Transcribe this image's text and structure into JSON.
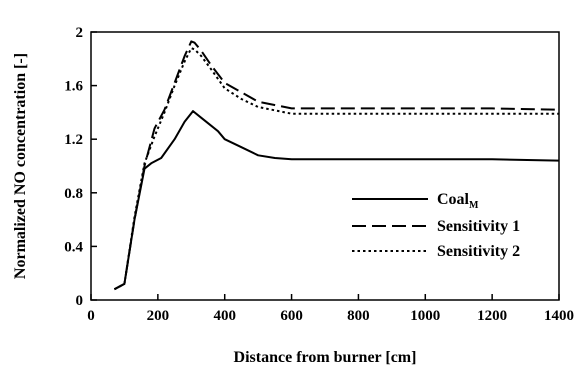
{
  "chart_data": {
    "type": "line",
    "xlabel": "Distance from burner [cm]",
    "ylabel": "Normalized NO concentration [-]",
    "xlim": [
      0,
      1400
    ],
    "ylim": [
      0,
      2
    ],
    "xticks": [
      0,
      200,
      400,
      600,
      800,
      1000,
      1200,
      1400
    ],
    "yticks": [
      0,
      0.4,
      0.8,
      1.2,
      1.6,
      2
    ],
    "xtick_labels": [
      "0",
      "200",
      "400",
      "600",
      "800",
      "1000",
      "1200",
      "1400"
    ],
    "ytick_labels": [
      "0",
      "0.4",
      "0.8",
      "1.2",
      "1.6",
      "2"
    ],
    "grid": false,
    "legend_position": "center-right",
    "series": [
      {
        "name": "Coal",
        "name_subscript": "M",
        "style": "solid",
        "x": [
          70,
          100,
          130,
          160,
          180,
          210,
          250,
          280,
          305,
          330,
          360,
          380,
          400,
          450,
          500,
          550,
          600,
          800,
          1000,
          1200,
          1400
        ],
        "y": [
          0.08,
          0.12,
          0.6,
          0.98,
          1.02,
          1.06,
          1.2,
          1.33,
          1.41,
          1.36,
          1.3,
          1.26,
          1.2,
          1.14,
          1.08,
          1.06,
          1.05,
          1.05,
          1.05,
          1.05,
          1.04
        ]
      },
      {
        "name": "Sensitivity 1",
        "style": "dashed",
        "x": [
          70,
          100,
          130,
          160,
          190,
          220,
          250,
          280,
          300,
          310,
          330,
          360,
          400,
          450,
          500,
          600,
          800,
          1000,
          1200,
          1400
        ],
        "y": [
          0.08,
          0.12,
          0.6,
          1.0,
          1.28,
          1.42,
          1.62,
          1.82,
          1.93,
          1.92,
          1.86,
          1.75,
          1.62,
          1.55,
          1.48,
          1.43,
          1.43,
          1.43,
          1.43,
          1.42
        ]
      },
      {
        "name": "Sensitivity 2",
        "style": "dotted",
        "x": [
          70,
          100,
          130,
          160,
          190,
          220,
          250,
          280,
          300,
          310,
          330,
          360,
          400,
          450,
          500,
          600,
          800,
          1000,
          1200,
          1400
        ],
        "y": [
          0.08,
          0.12,
          0.62,
          1.02,
          1.22,
          1.4,
          1.6,
          1.78,
          1.88,
          1.87,
          1.82,
          1.72,
          1.58,
          1.5,
          1.44,
          1.39,
          1.39,
          1.39,
          1.39,
          1.39
        ]
      }
    ]
  }
}
